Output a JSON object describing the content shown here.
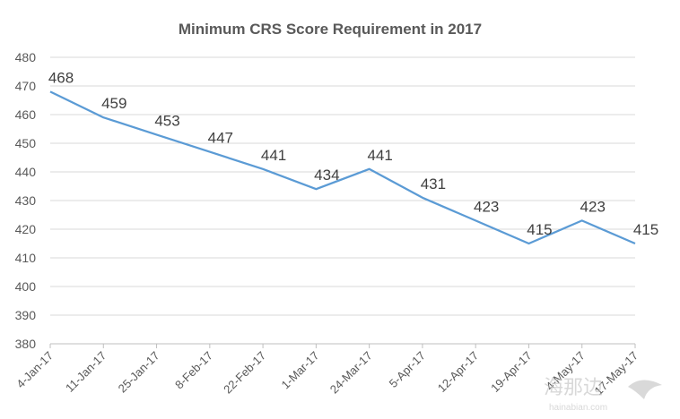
{
  "chart_data": {
    "type": "line",
    "title": "Minimum CRS Score Requirement in 2017",
    "xlabel": "",
    "ylabel": "",
    "categories": [
      "4-Jan-17",
      "11-Jan-17",
      "25-Jan-17",
      "8-Feb-17",
      "22-Feb-17",
      "1-Mar-17",
      "24-Mar-17",
      "5-Apr-17",
      "12-Apr-17",
      "19-Apr-17",
      "4-May-17",
      "17-May-17"
    ],
    "series": [
      {
        "values": [
          468,
          459,
          453,
          447,
          441,
          434,
          441,
          431,
          423,
          415,
          423,
          415
        ]
      }
    ],
    "ylim": [
      380,
      480
    ],
    "yticks": [
      380,
      390,
      400,
      410,
      420,
      430,
      440,
      450,
      460,
      470,
      480
    ],
    "grid": true,
    "data_labels": true,
    "legend": "none",
    "line_color": "#5b9bd5"
  },
  "watermark": {
    "text": "海那边",
    "subtext": "hainabian.com"
  }
}
